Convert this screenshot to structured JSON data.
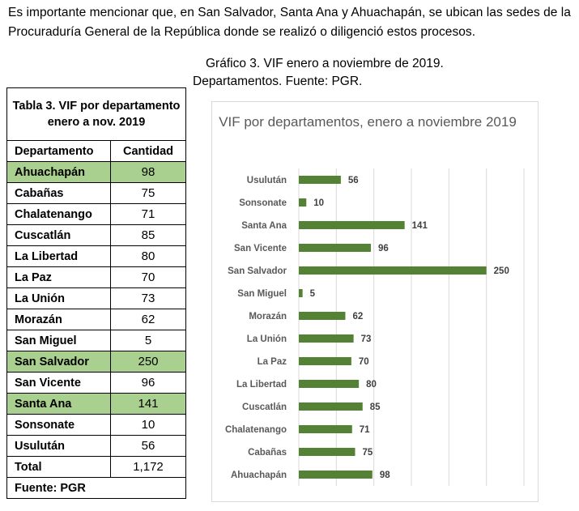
{
  "intro_text": "Es importante mencionar que, en San Salvador, Santa Ana y Ahuachapán, se ubican las sedes de la Procuraduría General de la República donde se realizó o diligenció estos procesos.",
  "figure_caption": {
    "line1": "Gráfico 3. VIF enero a noviembre de 2019.",
    "line2": "Departamentos. Fuente: PGR."
  },
  "table": {
    "title": "Tabla 3. VIF por departamento enero a nov. 2019",
    "col_department": "Departamento",
    "col_quantity": "Cantidad",
    "rows": [
      {
        "department": "Ahuachapán",
        "quantity": "98",
        "highlight": true
      },
      {
        "department": "Cabañas",
        "quantity": "75",
        "highlight": false
      },
      {
        "department": "Chalatenango",
        "quantity": "71",
        "highlight": false
      },
      {
        "department": "Cuscatlán",
        "quantity": "85",
        "highlight": false
      },
      {
        "department": "La Libertad",
        "quantity": "80",
        "highlight": false
      },
      {
        "department": "La Paz",
        "quantity": "70",
        "highlight": false
      },
      {
        "department": "La Unión",
        "quantity": "73",
        "highlight": false
      },
      {
        "department": "Morazán",
        "quantity": "62",
        "highlight": false
      },
      {
        "department": "San Miguel",
        "quantity": "5",
        "highlight": false
      },
      {
        "department": "San Salvador",
        "quantity": "250",
        "highlight": true
      },
      {
        "department": "San Vicente",
        "quantity": "96",
        "highlight": false
      },
      {
        "department": "Santa Ana",
        "quantity": "141",
        "highlight": true
      },
      {
        "department": "Sonsonate",
        "quantity": "10",
        "highlight": false
      },
      {
        "department": "Usulután",
        "quantity": "56",
        "highlight": false
      }
    ],
    "total_label": "Total",
    "total_value": "1,172",
    "source": "Fuente: PGR",
    "highlight_color": "#a9d08e"
  },
  "chart_data": {
    "type": "bar",
    "orientation": "horizontal",
    "title": "VIF por departamentos, enero a noviembre 2019",
    "categories": [
      "Usulután",
      "Sonsonate",
      "Santa Ana",
      "San Vicente",
      "San Salvador",
      "San Miguel",
      "Morazán",
      "La Unión",
      "La Paz",
      "La Libertad",
      "Cuscatlán",
      "Chalatenango",
      "Cabañas",
      "Ahuachapán"
    ],
    "values": [
      56,
      10,
      141,
      96,
      250,
      5,
      62,
      73,
      70,
      80,
      85,
      71,
      75,
      98
    ],
    "xlim": [
      0,
      300
    ],
    "grid": true,
    "data_labels": true,
    "bar_color": "#548235"
  }
}
